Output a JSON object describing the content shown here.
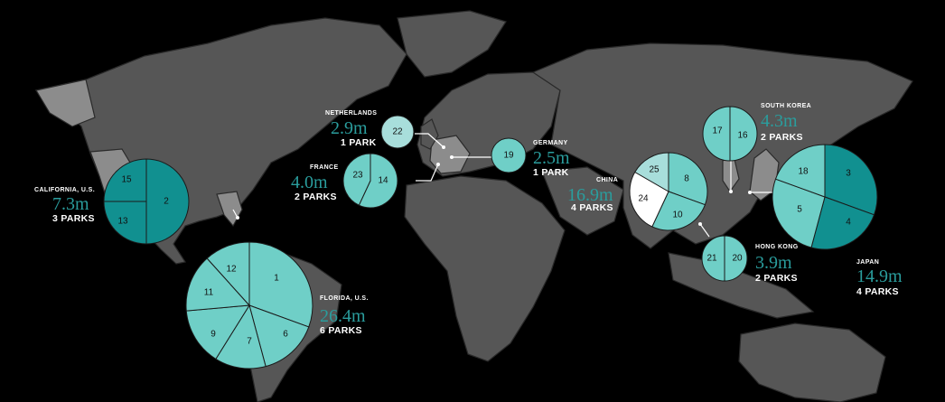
{
  "colors": {
    "background": "#000000",
    "land": "#565656",
    "land_highlight": "#8c8c8c",
    "accent": "#2a9d9d",
    "pie_dark": "#119090",
    "pie_light": "#6fcfc7",
    "pie_pale": "#a8dedb",
    "pie_white": "#ffffff"
  },
  "regions": [
    {
      "id": "california",
      "name": "CALIFORNIA, U.S.",
      "visitors": "7.3m",
      "parks": "3 PARKS",
      "slices": [
        {
          "label": "2",
          "color": "#119090"
        },
        {
          "label": "13",
          "color": "#119090"
        },
        {
          "label": "15",
          "color": "#119090"
        }
      ]
    },
    {
      "id": "florida",
      "name": "FLORIDA, U.S.",
      "visitors": "26.4m",
      "parks": "6 PARKS",
      "slices": [
        {
          "label": "1",
          "color": "#6fcfc7"
        },
        {
          "label": "6",
          "color": "#6fcfc7"
        },
        {
          "label": "7",
          "color": "#6fcfc7"
        },
        {
          "label": "9",
          "color": "#6fcfc7"
        },
        {
          "label": "11",
          "color": "#6fcfc7"
        },
        {
          "label": "12",
          "color": "#6fcfc7"
        }
      ]
    },
    {
      "id": "netherlands",
      "name": "NETHERLANDS",
      "visitors": "2.9m",
      "parks": "1 PARK",
      "slices": [
        {
          "label": "22",
          "color": "#a8dedb"
        }
      ]
    },
    {
      "id": "france",
      "name": "FRANCE",
      "visitors": "4.0m",
      "parks": "2 PARKS",
      "slices": [
        {
          "label": "14",
          "color": "#6fcfc7"
        },
        {
          "label": "23",
          "color": "#6fcfc7"
        }
      ]
    },
    {
      "id": "germany",
      "name": "GERMANY",
      "visitors": "2.5m",
      "parks": "1 PARK",
      "slices": [
        {
          "label": "19",
          "color": "#6fcfc7"
        }
      ]
    },
    {
      "id": "china",
      "name": "CHINA",
      "visitors": "16.9m",
      "parks": "4 PARKS",
      "slices": [
        {
          "label": "8",
          "color": "#6fcfc7"
        },
        {
          "label": "10",
          "color": "#6fcfc7"
        },
        {
          "label": "24",
          "color": "#ffffff"
        },
        {
          "label": "25",
          "color": "#a8dedb"
        }
      ]
    },
    {
      "id": "south_korea",
      "name": "SOUTH KOREA",
      "visitors": "4.3m",
      "parks": "2 PARKS",
      "slices": [
        {
          "label": "16",
          "color": "#6fcfc7"
        },
        {
          "label": "17",
          "color": "#6fcfc7"
        }
      ]
    },
    {
      "id": "hong_kong",
      "name": "HONG KONG",
      "visitors": "3.9m",
      "parks": "2 PARKS",
      "slices": [
        {
          "label": "20",
          "color": "#6fcfc7"
        },
        {
          "label": "21",
          "color": "#6fcfc7"
        }
      ]
    },
    {
      "id": "japan",
      "name": "JAPAN",
      "visitors": "14.9m",
      "parks": "4 PARKS",
      "slices": [
        {
          "label": "3",
          "color": "#119090"
        },
        {
          "label": "4",
          "color": "#119090"
        },
        {
          "label": "5",
          "color": "#6fcfc7"
        },
        {
          "label": "18",
          "color": "#6fcfc7"
        }
      ]
    }
  ]
}
